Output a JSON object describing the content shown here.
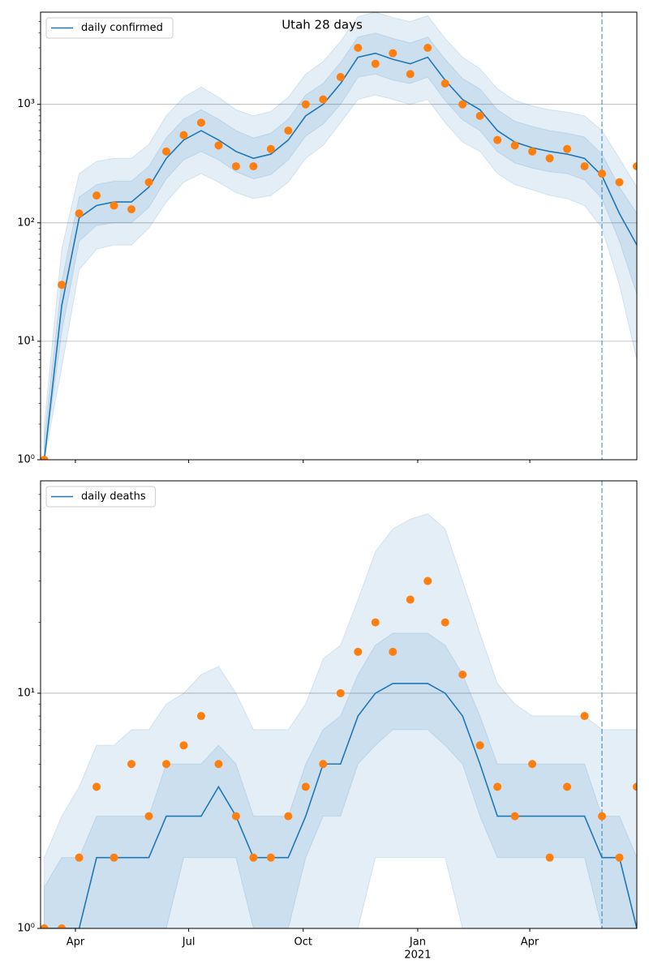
{
  "chart_data": [
    {
      "type": "line",
      "title": "Utah 28 days",
      "log_y": true,
      "grid": true,
      "legend": "upper left",
      "x": [
        "2020-03-07",
        "2020-03-21",
        "2020-04-04",
        "2020-04-18",
        "2020-05-02",
        "2020-05-16",
        "2020-05-30",
        "2020-06-13",
        "2020-06-27",
        "2020-07-11",
        "2020-07-25",
        "2020-08-08",
        "2020-08-22",
        "2020-09-05",
        "2020-09-19",
        "2020-10-03",
        "2020-10-17",
        "2020-10-31",
        "2020-11-14",
        "2020-11-28",
        "2020-12-12",
        "2020-12-26",
        "2021-01-09",
        "2021-01-23",
        "2021-02-06",
        "2021-02-20",
        "2021-03-06",
        "2021-03-20",
        "2021-04-03",
        "2021-04-17",
        "2021-05-01",
        "2021-05-15",
        "2021-05-29",
        "2021-06-12",
        "2021-06-26"
      ],
      "xlim": [
        "2020-03-04",
        "2021-06-26"
      ],
      "xticks": [
        {
          "value": "2020-04-01",
          "label": "Apr"
        },
        {
          "value": "2020-07-01",
          "label": "Jul"
        },
        {
          "value": "2020-10-01",
          "label": "Oct"
        },
        {
          "value": "2021-01-01",
          "label": "Jan",
          "sublabel": "2021"
        },
        {
          "value": "2021-04-01",
          "label": "Apr"
        }
      ],
      "ylim": [
        1,
        6000
      ],
      "yticks": [
        {
          "value": 1,
          "label": "10⁰"
        },
        {
          "value": 10,
          "label": "10¹"
        },
        {
          "value": 100,
          "label": "10²"
        },
        {
          "value": 1000,
          "label": "10³"
        }
      ],
      "vline_x": "2021-05-29",
      "bands": [
        {
          "color": "#1f77b4",
          "lower": [
            1,
            6,
            40,
            60,
            65,
            65,
            90,
            150,
            220,
            260,
            220,
            180,
            160,
            170,
            220,
            350,
            450,
            700,
            1100,
            1200,
            1100,
            1000,
            1100,
            700,
            480,
            400,
            260,
            210,
            190,
            170,
            160,
            140,
            90,
            30,
            7
          ],
          "upper": [
            2,
            60,
            260,
            330,
            350,
            350,
            460,
            800,
            1150,
            1400,
            1150,
            900,
            800,
            870,
            1150,
            1800,
            2300,
            3400,
            5500,
            6000,
            5400,
            5000,
            5600,
            3600,
            2500,
            2000,
            1350,
            1080,
            970,
            900,
            860,
            800,
            600,
            350,
            200
          ]
        },
        {
          "color": "#1f77b4",
          "lower": [
            1,
            12,
            70,
            95,
            100,
            100,
            135,
            235,
            340,
            400,
            340,
            270,
            235,
            255,
            340,
            540,
            680,
            1000,
            1700,
            1800,
            1600,
            1500,
            1700,
            1080,
            740,
            600,
            400,
            320,
            290,
            270,
            260,
            230,
            160,
            70,
            25
          ],
          "upper": [
            1.5,
            32,
            165,
            210,
            225,
            225,
            300,
            520,
            750,
            900,
            750,
            600,
            520,
            570,
            750,
            1200,
            1500,
            2250,
            3700,
            4000,
            3600,
            3300,
            3700,
            2400,
            1650,
            1350,
            900,
            720,
            650,
            600,
            570,
            530,
            380,
            200,
            120
          ]
        }
      ],
      "series": [
        {
          "name": "daily confirmed",
          "color": "#1f77b4",
          "values": [
            1,
            20,
            110,
            140,
            150,
            150,
            200,
            350,
            500,
            600,
            500,
            400,
            350,
            380,
            500,
            800,
            1000,
            1500,
            2500,
            2700,
            2400,
            2200,
            2500,
            1600,
            1100,
            900,
            600,
            480,
            430,
            400,
            380,
            350,
            250,
            120,
            65
          ]
        }
      ],
      "points": {
        "color": "#ff7f0e",
        "values": [
          1,
          30,
          120,
          170,
          140,
          130,
          220,
          400,
          550,
          700,
          450,
          300,
          300,
          420,
          600,
          1000,
          1100,
          1700,
          3000,
          2200,
          2700,
          1800,
          3000,
          1500,
          1000,
          800,
          500,
          450,
          400,
          350,
          420,
          300,
          260,
          220,
          300
        ]
      }
    },
    {
      "type": "line",
      "log_y": true,
      "grid": true,
      "legend": "upper left",
      "x": [
        "2020-03-07",
        "2020-03-21",
        "2020-04-04",
        "2020-04-18",
        "2020-05-02",
        "2020-05-16",
        "2020-05-30",
        "2020-06-13",
        "2020-06-27",
        "2020-07-11",
        "2020-07-25",
        "2020-08-08",
        "2020-08-22",
        "2020-09-05",
        "2020-09-19",
        "2020-10-03",
        "2020-10-17",
        "2020-10-31",
        "2020-11-14",
        "2020-11-28",
        "2020-12-12",
        "2020-12-26",
        "2021-01-09",
        "2021-01-23",
        "2021-02-06",
        "2021-02-20",
        "2021-03-06",
        "2021-03-20",
        "2021-04-03",
        "2021-04-17",
        "2021-05-01",
        "2021-05-15",
        "2021-05-29",
        "2021-06-12",
        "2021-06-26"
      ],
      "xlim": [
        "2020-03-04",
        "2021-06-26"
      ],
      "xticks": [
        {
          "value": "2020-04-01",
          "label": "Apr"
        },
        {
          "value": "2020-07-01",
          "label": "Jul"
        },
        {
          "value": "2020-10-01",
          "label": "Oct"
        },
        {
          "value": "2021-01-01",
          "label": "Jan",
          "sublabel": "2021"
        },
        {
          "value": "2021-04-01",
          "label": "Apr"
        }
      ],
      "ylim": [
        1,
        80
      ],
      "yticks": [
        {
          "value": 1,
          "label": "10⁰"
        },
        {
          "value": 10,
          "label": "10¹"
        }
      ],
      "vline_x": "2021-05-29",
      "bands": [
        {
          "color": "#1f77b4",
          "lower": [
            1,
            1,
            1,
            1,
            1,
            1,
            1,
            1,
            1,
            1,
            1,
            1,
            1,
            1,
            1,
            1,
            1,
            1,
            1,
            2,
            2,
            2,
            2,
            2,
            1,
            1,
            1,
            1,
            1,
            1,
            1,
            1,
            1,
            1,
            1
          ],
          "upper": [
            2,
            3,
            4,
            6,
            6,
            7,
            7,
            9,
            10,
            12,
            13,
            10,
            7,
            7,
            7,
            9,
            14,
            16,
            25,
            40,
            50,
            55,
            58,
            50,
            30,
            18,
            11,
            9,
            8,
            8,
            8,
            8,
            7,
            7,
            7
          ]
        },
        {
          "color": "#1f77b4",
          "lower": [
            1,
            1,
            1,
            1,
            1,
            1,
            1,
            1,
            2,
            2,
            2,
            2,
            1,
            1,
            1,
            2,
            3,
            3,
            5,
            6,
            7,
            7,
            7,
            6,
            5,
            3,
            2,
            2,
            2,
            2,
            2,
            2,
            1,
            1,
            1
          ],
          "upper": [
            1.5,
            2,
            2,
            3,
            3,
            3,
            3,
            5,
            5,
            5,
            6,
            5,
            3,
            3,
            3,
            5,
            7,
            8,
            12,
            16,
            18,
            18,
            18,
            16,
            12,
            8,
            5,
            5,
            5,
            5,
            5,
            5,
            3,
            3,
            2
          ]
        }
      ],
      "series": [
        {
          "name": "daily deaths",
          "color": "#1f77b4",
          "values": [
            1,
            1,
            1,
            2,
            2,
            2,
            2,
            3,
            3,
            3,
            4,
            3,
            2,
            2,
            2,
            3,
            5,
            5,
            8,
            10,
            11,
            11,
            11,
            10,
            8,
            5,
            3,
            3,
            3,
            3,
            3,
            3,
            2,
            2,
            1
          ]
        }
      ],
      "points": {
        "color": "#ff7f0e",
        "values": [
          1,
          1,
          2,
          4,
          2,
          5,
          3,
          5,
          6,
          8,
          5,
          3,
          2,
          2,
          3,
          4,
          5,
          10,
          15,
          20,
          15,
          25,
          30,
          20,
          12,
          6,
          4,
          3,
          5,
          2,
          4,
          8,
          3,
          2,
          4
        ]
      }
    }
  ]
}
